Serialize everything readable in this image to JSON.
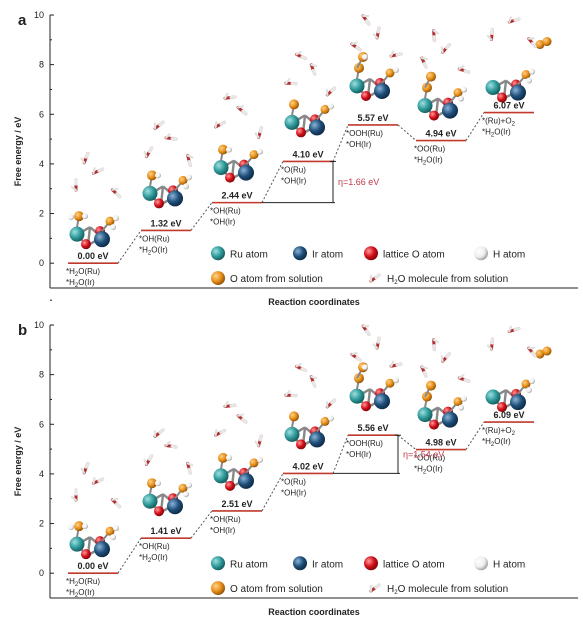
{
  "chart_data": [
    {
      "type": "energy-profile",
      "panel_label": "a",
      "ylabel": "Free energy / eV",
      "xlabel": "Reaction coordinates",
      "ylim": [
        -1,
        10
      ],
      "yticks": [
        "0",
        "2",
        "4",
        "6",
        "8",
        "10"
      ],
      "steps": [
        {
          "value": 0.0,
          "value_label": "0.00 eV",
          "state": [
            "*H2O(Ru)",
            "*H2O(Ir)"
          ]
        },
        {
          "value": 1.32,
          "value_label": "1.32 eV",
          "state": [
            "*OH(Ru)",
            "*H2O(Ir)"
          ]
        },
        {
          "value": 2.44,
          "value_label": "2.44 eV",
          "state": [
            "*OH(Ru)",
            "*OH(Ir)"
          ]
        },
        {
          "value": 4.1,
          "value_label": "4.10 eV",
          "state": [
            "*O(Ru)",
            "*OH(Ir)"
          ]
        },
        {
          "value": 5.57,
          "value_label": "5.57 eV",
          "state": [
            "*OOH(Ru)",
            "*OH(Ir)"
          ]
        },
        {
          "value": 4.94,
          "value_label": "4.94 eV",
          "state": [
            "*OO(Ru)",
            "*H2O(Ir)"
          ]
        },
        {
          "value": 6.07,
          "value_label": "6.07 eV",
          "state": [
            "*(Ru)+O2",
            "*H2O(Ir)"
          ]
        }
      ],
      "overpotential": {
        "label": "η=1.66 eV",
        "from_step": 2,
        "to_step": 3
      }
    },
    {
      "type": "energy-profile",
      "panel_label": "b",
      "ylabel": "Free energy / eV",
      "xlabel": "Reaction coordinates",
      "ylim": [
        -1,
        10
      ],
      "yticks": [
        "0",
        "2",
        "4",
        "6",
        "8",
        "10"
      ],
      "steps": [
        {
          "value": 0.0,
          "value_label": "0.00 eV",
          "state": [
            "*H2O(Ru)",
            "*H2O(Ir)"
          ]
        },
        {
          "value": 1.41,
          "value_label": "1.41 eV",
          "state": [
            "*OH(Ru)",
            "*H2O(Ir)"
          ]
        },
        {
          "value": 2.51,
          "value_label": "2.51 eV",
          "state": [
            "*OH(Ru)",
            "*OH(Ir)"
          ]
        },
        {
          "value": 4.02,
          "value_label": "4.02 eV",
          "state": [
            "*O(Ru)",
            "*OH(Ir)"
          ]
        },
        {
          "value": 5.56,
          "value_label": "5.56 eV",
          "state": [
            "*OOH(Ru)",
            "*OH(Ir)"
          ]
        },
        {
          "value": 4.98,
          "value_label": "4.98 eV",
          "state": [
            "*OO(Ru)",
            "*H2O(Ir)"
          ]
        },
        {
          "value": 6.09,
          "value_label": "6.09 eV",
          "state": [
            "*(Ru)+O2",
            "*H2O(Ir)"
          ]
        }
      ],
      "overpotential": {
        "label": "η=1.54 eV",
        "from_step": 3,
        "to_step": 4
      }
    }
  ],
  "legend": {
    "items": [
      {
        "label": "Ru atom",
        "color": "#2f9a9a",
        "icon": "ru-atom-sphere"
      },
      {
        "label": "Ir atom",
        "color": "#1f4f7a",
        "icon": "ir-atom-sphere"
      },
      {
        "label": "lattice O atom",
        "color": "#d4101a",
        "icon": "lattice-o-sphere"
      },
      {
        "label": "H atom",
        "color": "#f2f2f2",
        "icon": "h-atom-sphere"
      },
      {
        "label": "O atom from solution",
        "color": "#e8901a",
        "icon": "solution-o-sphere"
      },
      {
        "label": "H2O molecule from solution",
        "color": "#c83a3a",
        "icon": "water-molecule"
      }
    ]
  },
  "colors": {
    "level_line": "#c0392b",
    "connector": "#555555",
    "overpotential_text": "#c0394a",
    "axis": "#222222"
  }
}
